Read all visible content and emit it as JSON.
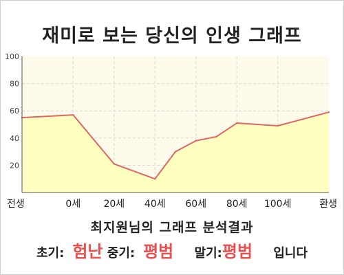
{
  "title": "재미로 보는 당신의 인생 그래프",
  "result_heading": "최지원님의 그래프 분석결과",
  "summary": {
    "early_label": "초기:",
    "early_value": "험난",
    "mid_label": "중기:",
    "mid_value": "평범",
    "late_label": "말기:",
    "late_value": "평범",
    "suffix": "입니다"
  },
  "colors": {
    "line": "#e06666",
    "fill": "#ffffc0",
    "plot_bg": "#fffbea",
    "accent_text": "#e8504e"
  },
  "chart_data": {
    "type": "area",
    "title": "",
    "xlabel": "",
    "ylabel": "",
    "ylim": [
      0,
      100
    ],
    "yticks": [
      20,
      40,
      60,
      80,
      100
    ],
    "xtick_labels": [
      "전생",
      "0세",
      "20세",
      "40세",
      "60세",
      "80세",
      "100세",
      "환생"
    ],
    "grid": true,
    "series": [
      {
        "points": [
          {
            "x": -25,
            "y": 55
          },
          {
            "x": 0,
            "y": 57
          },
          {
            "x": 20,
            "y": 21
          },
          {
            "x": 40,
            "y": 10
          },
          {
            "x": 50,
            "y": 30
          },
          {
            "x": 60,
            "y": 38
          },
          {
            "x": 70,
            "y": 41
          },
          {
            "x": 80,
            "y": 51
          },
          {
            "x": 100,
            "y": 49
          },
          {
            "x": 125,
            "y": 59
          }
        ]
      }
    ]
  }
}
